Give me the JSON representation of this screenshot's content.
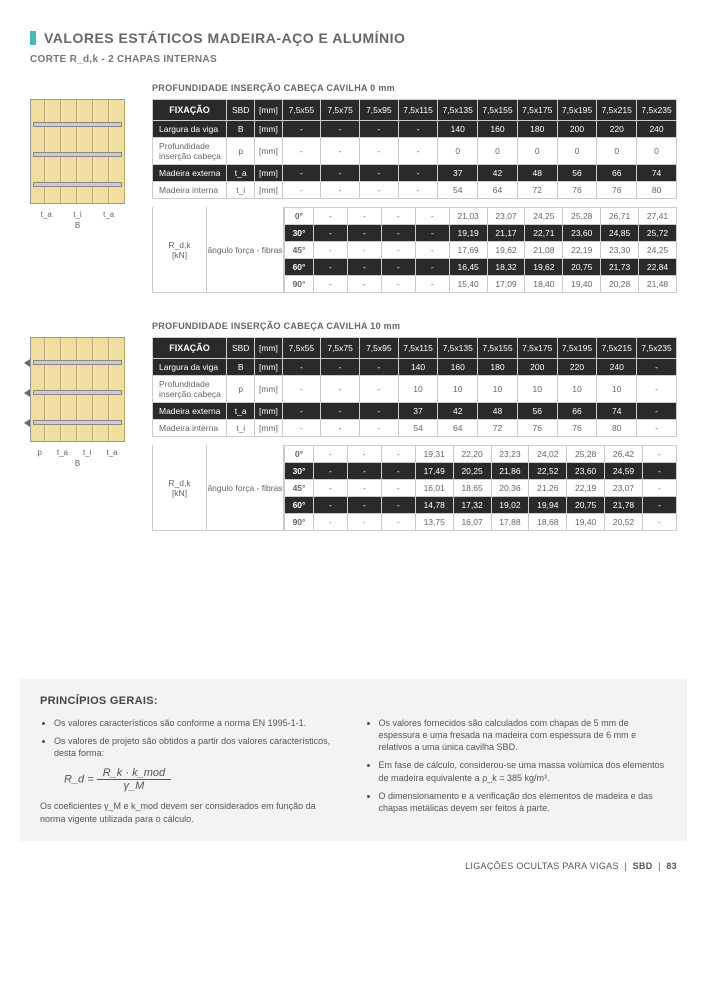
{
  "title": "VALORES ESTÁTICOS MADEIRA-AÇO E ALUMÍNIO",
  "subtitle": "CORTE R_d,k - 2 CHAPAS INTERNAS",
  "columns": [
    "7,5x55",
    "7,5x75",
    "7,5x95",
    "7,5x115",
    "7,5x135",
    "7,5x155",
    "7,5x175",
    "7,5x195",
    "7,5x215",
    "7,5x235"
  ],
  "hdrFix": "FIXAÇÃO",
  "hdrSBD": "SBD",
  "hdrMM": "[mm]",
  "rows": {
    "largura": "Largura da viga",
    "prof": "Profundidade inserção cabeça",
    "madExt": "Madeira externa",
    "madInt": "Madeira interna"
  },
  "syms": {
    "B": "B",
    "p": "p",
    "ta": "t_a",
    "ti": "t_i"
  },
  "angle": {
    "rdk": "R_d,k",
    "kn": "[kN]",
    "label": "ângulo força - fibras"
  },
  "angles": [
    "0°",
    "30°",
    "45°",
    "60°",
    "90°"
  ],
  "dimLabels": {
    "ta": "t_a",
    "ti": "t_i",
    "p": "p",
    "B": "B"
  },
  "section1": {
    "title": "PROFUNDIDADE INSERÇÃO CABEÇA CAVILHA 0 mm",
    "largura": [
      "-",
      "-",
      "-",
      "-",
      "140",
      "160",
      "180",
      "200",
      "220",
      "240"
    ],
    "prof": [
      "-",
      "-",
      "-",
      "-",
      "0",
      "0",
      "0",
      "0",
      "0",
      "0"
    ],
    "madExt": [
      "-",
      "-",
      "-",
      "-",
      "37",
      "42",
      "48",
      "56",
      "66",
      "74"
    ],
    "madInt": [
      "-",
      "-",
      "-",
      "-",
      "54",
      "64",
      "72",
      "76",
      "76",
      "80"
    ],
    "angleRows": [
      [
        "-",
        "-",
        "-",
        "-",
        "21,03",
        "23,07",
        "24,25",
        "25,28",
        "26,71",
        "27,41"
      ],
      [
        "-",
        "-",
        "-",
        "-",
        "19,19",
        "21,17",
        "22,71",
        "23,60",
        "24,85",
        "25,72"
      ],
      [
        "-",
        "-",
        "-",
        "-",
        "17,69",
        "19,62",
        "21,08",
        "22,19",
        "23,30",
        "24,25"
      ],
      [
        "-",
        "-",
        "-",
        "-",
        "16,45",
        "18,32",
        "19,62",
        "20,75",
        "21,73",
        "22,84"
      ],
      [
        "-",
        "-",
        "-",
        "-",
        "15,40",
        "17,09",
        "18,40",
        "19,40",
        "20,28",
        "21,48"
      ]
    ]
  },
  "section2": {
    "title": "PROFUNDIDADE INSERÇÃO CABEÇA CAVILHA 10 mm",
    "largura": [
      "-",
      "-",
      "-",
      "140",
      "160",
      "180",
      "200",
      "220",
      "240",
      "-"
    ],
    "prof": [
      "-",
      "-",
      "-",
      "10",
      "10",
      "10",
      "10",
      "10",
      "10",
      "-"
    ],
    "madExt": [
      "-",
      "-",
      "-",
      "37",
      "42",
      "48",
      "56",
      "66",
      "74",
      "-"
    ],
    "madInt": [
      "-",
      "-",
      "-",
      "54",
      "64",
      "72",
      "76",
      "76",
      "80",
      "-"
    ],
    "angleRows": [
      [
        "-",
        "-",
        "-",
        "19,31",
        "22,20",
        "23,23",
        "24,02",
        "25,28",
        "26,42",
        "-"
      ],
      [
        "-",
        "-",
        "-",
        "17,49",
        "20,25",
        "21,86",
        "22,52",
        "23,60",
        "24,59",
        "-"
      ],
      [
        "-",
        "-",
        "-",
        "16,01",
        "18,65",
        "20,36",
        "21,26",
        "22,19",
        "23,07",
        "-"
      ],
      [
        "-",
        "-",
        "-",
        "14,78",
        "17,32",
        "19,02",
        "19,94",
        "20,75",
        "21,78",
        "-"
      ],
      [
        "-",
        "-",
        "-",
        "13,75",
        "16,07",
        "17,88",
        "18,68",
        "19,40",
        "20,52",
        "-"
      ]
    ]
  },
  "principles": {
    "heading": "PRINCÍPIOS GERAIS:",
    "left": [
      "Os valores característicos são conforme a norma EN 1995-1-1.",
      "Os valores de projeto são obtidos a partir dos valores característicos, desta forma:"
    ],
    "formula": {
      "left": "R_d =",
      "num": "R_k · k_mod",
      "den": "γ_M"
    },
    "leftNote": "Os coeficientes γ_M e k_mod devem ser considerados em função da norma vigente utilizada para o cálculo.",
    "right": [
      "Os valores fornecidos são calculados com chapas de 5 mm de espessura e uma fresada na madeira com espessura de 6 mm e relativos a uma única cavilha SBD.",
      "Em fase de cálculo, considerou-se uma massa volúmica dos elementos de madeira equivalente a ρ_k = 385 kg/m³.",
      "O dimensionamento e a verificação dos elementos de madeira e das chapas metálicas devem ser feitos à parte."
    ]
  },
  "footer": {
    "text": "LIGAÇÕES OCULTAS PARA VIGAS",
    "code": "SBD",
    "page": "83"
  },
  "colors": {
    "accent": "#4db8b8",
    "darkRow": "#2a2a2a",
    "wood": "#f3e4b5",
    "panel": "#f3f3f3"
  }
}
